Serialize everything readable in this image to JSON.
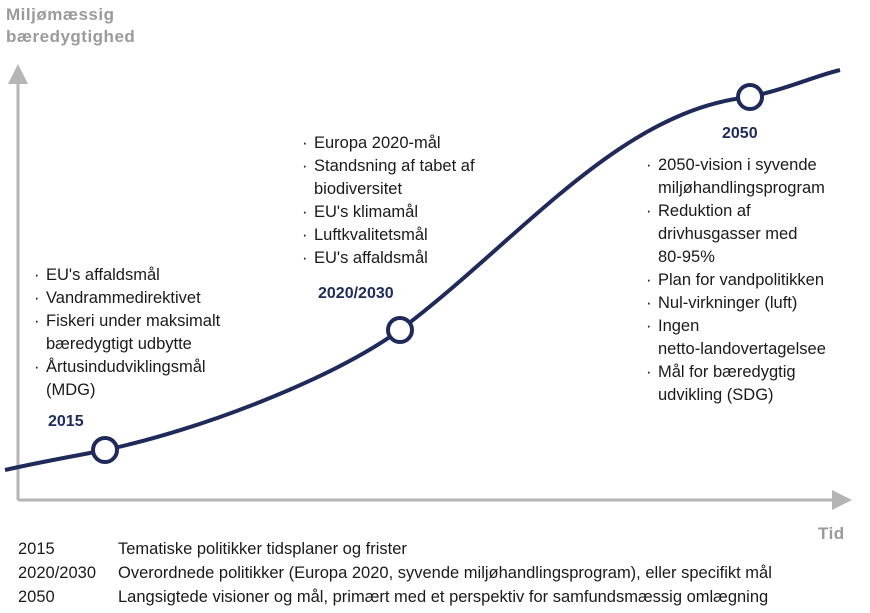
{
  "y_axis_label": [
    "Miljømæssig",
    "bæredygtighed"
  ],
  "x_axis_label": "Tid",
  "milestones": [
    {
      "label": "2015",
      "items": [
        [
          "EU's affaldsmål"
        ],
        [
          "Vandrammedirektivet"
        ],
        [
          "Fiskeri under maksimalt",
          "bæredygtigt udbytte"
        ],
        [
          "Årtusindudviklingsmål",
          "(MDG)"
        ]
      ]
    },
    {
      "label": "2020/2030",
      "items": [
        [
          "Europa 2020-mål"
        ],
        [
          "Standsning af tabet af",
          "biodiversitet"
        ],
        [
          "EU's klimamål"
        ],
        [
          "Luftkvalitetsmål"
        ],
        [
          "EU's affaldsmål"
        ]
      ]
    },
    {
      "label": "2050",
      "items": [
        [
          "2050-vision i syvende",
          "miljøhandlingsprogram"
        ],
        [
          "Reduktion af",
          "drivhusgasser med",
          "80-95%"
        ],
        [
          "Plan for vandpolitikken"
        ],
        [
          "Nul-virkninger (luft)"
        ],
        [
          "Ingen",
          "netto-landovertagelsee"
        ],
        [
          "Mål for bæredygtig",
          "udvikling (SDG)"
        ]
      ]
    }
  ],
  "legend": [
    [
      "2015",
      "Tematiske politikker tidsplaner og frister"
    ],
    [
      "2020/2030",
      "Overordnede politikker (Europa 2020, syvende miljøhandlingsprogram), eller specifikt mål"
    ],
    [
      "2050",
      "Langsigtede visioner og mål, primært med et perspektiv for samfundsmæssig omlægning"
    ]
  ]
}
